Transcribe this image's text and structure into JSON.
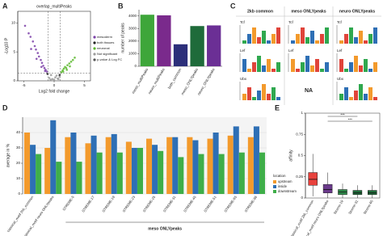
{
  "chart_data": [
    {
      "panel": "A",
      "type": "scatter",
      "title": "overlap_multiPeaks",
      "x_label": "Log2 fold change",
      "y_label": "-Log10 P",
      "xlim": [
        -6,
        6
      ],
      "ylim": [
        0,
        12
      ],
      "xticks": [
        -5,
        0,
        5
      ],
      "yticks": [
        0,
        5,
        10
      ],
      "vlines": [
        -1,
        1
      ],
      "hline": 1.3,
      "series": [
        {
          "name": "mesoderm",
          "color": "#7b3fa8",
          "x": [
            -4.8,
            -4.2,
            -3.9,
            -3.5,
            -3.2,
            -3.0,
            -2.7,
            -2.5,
            -2.2,
            -2.0,
            -1.8,
            -1.6,
            -1.4,
            -1.2,
            -3.8,
            -2.9,
            -2.1,
            -1.5
          ],
          "y": [
            9.5,
            8.2,
            7.6,
            6.8,
            6.0,
            5.4,
            4.8,
            4.2,
            3.6,
            3.1,
            2.6,
            2.2,
            1.9,
            1.6,
            5.5,
            3.8,
            2.4,
            1.7
          ]
        },
        {
          "name": "both tissues",
          "color": "#222222",
          "x": [
            -1.1,
            0.9
          ],
          "y": [
            1.2,
            1.0
          ]
        },
        {
          "name": "neuronal",
          "color": "#5cb82e",
          "x": [
            1.2,
            1.4,
            1.6,
            1.8,
            2.0,
            2.2,
            2.5,
            2.8,
            3.1,
            3.4,
            1.5,
            2.1,
            2.6
          ],
          "y": [
            1.5,
            1.8,
            2.1,
            2.4,
            2.2,
            2.7,
            3.0,
            3.3,
            3.6,
            4.0,
            1.6,
            1.9,
            2.5
          ]
        },
        {
          "name": "Not significant",
          "color": "#9a9a9a",
          "x": [
            -0.8,
            -0.5,
            -0.3,
            0,
            0.2,
            0.4,
            0.6,
            0.9,
            -0.6,
            0.7
          ],
          "y": [
            0.5,
            1.0,
            0.3,
            0.2,
            0.6,
            0.9,
            0.4,
            0.7,
            0.2,
            0.3
          ]
        },
        {
          "name": "p-value & Log FC",
          "color": "#555555",
          "x": [],
          "y": []
        }
      ]
    },
    {
      "panel": "B",
      "type": "bar",
      "y_label": "number of peaks",
      "categories": [
        "meso_multiPeaks",
        "neuro_multiPeaks",
        "both_common",
        "meso_ONLYpeaks",
        "neuro_ONLYpeaks"
      ],
      "values": [
        4100,
        4050,
        1750,
        3200,
        3250
      ],
      "colors": [
        "#3ea63a",
        "#7a2a8c",
        "#2c2f7a",
        "#1f6b3a",
        "#6b2f95"
      ],
      "ylim": [
        0,
        4500
      ],
      "yticks": [
        0,
        1000,
        2000,
        3000,
        4000
      ]
    },
    {
      "panel": "D",
      "type": "grouped_bar",
      "y_label": "average in %",
      "legend_title": "location",
      "ylim": [
        0,
        50
      ],
      "yticks": [
        0,
        10,
        20,
        30,
        40
      ],
      "grid": true,
      "groups": [
        {
          "name": null,
          "categories": [
            "classical_motif 2kb_common",
            "classical_motif neuro ONLYpeaks"
          ]
        },
        {
          "name": "meso ONLYpeaks",
          "categories": [
            "STREME-5",
            "STREME-17",
            "STREME-19",
            "STREME-23",
            "STREME-25",
            "STREME-31",
            "STREME-45",
            "STREME-51",
            "STREME-65",
            "STREME-86"
          ]
        }
      ],
      "series": [
        {
          "name": "upstream",
          "color": "#f39a2c",
          "values": [
            40,
            30,
            37,
            33,
            37,
            34,
            36,
            37,
            37,
            36,
            38,
            37
          ]
        },
        {
          "name": "inside",
          "color": "#2e6fb5",
          "values": [
            32,
            48,
            40,
            38,
            39,
            30,
            32,
            37,
            35,
            40,
            44,
            44
          ]
        },
        {
          "name": "downstream",
          "color": "#3fae49",
          "values": [
            26,
            21,
            21,
            27,
            27,
            30,
            28,
            24,
            26,
            26,
            27,
            27
          ]
        }
      ]
    },
    {
      "panel": "E",
      "type": "box",
      "y_label": "affinity",
      "ylim": [
        0,
        1
      ],
      "yticks": [
        0,
        0.25,
        0.5,
        0.75,
        1
      ],
      "annotations": [
        "***",
        "***"
      ],
      "categories": [
        "classical_motif 2kb_common",
        "classical_motif neuro ONLYpeaks",
        "Streme-19",
        "Streme-31",
        "Streme-65"
      ],
      "colors": [
        "#e8413c",
        "#6b3a8c",
        "#2f8a4a",
        "#1f6b3a",
        "#1f6b3a"
      ],
      "boxes": [
        {
          "min": 0.02,
          "q1": 0.15,
          "median": 0.22,
          "q3": 0.3,
          "max": 0.52
        },
        {
          "min": 0,
          "q1": 0.06,
          "median": 0.1,
          "q3": 0.16,
          "max": 0.3
        },
        {
          "min": 0,
          "q1": 0.04,
          "median": 0.07,
          "q3": 0.1,
          "max": 0.17
        },
        {
          "min": 0,
          "q1": 0.04,
          "median": 0.06,
          "q3": 0.09,
          "max": 0.15
        },
        {
          "min": 0,
          "q1": 0.04,
          "median": 0.06,
          "q3": 0.09,
          "max": 0.15
        }
      ]
    }
  ],
  "motif_panel": {
    "panel": "C",
    "columns": [
      "2kb common",
      "meso ONLYpeaks",
      "neuro ONLYpeaks"
    ],
    "rows": [
      [
        {
          "label": "Tcf"
        },
        {
          "label": "Tcf"
        },
        {
          "label": "Tcf"
        }
      ],
      [
        {
          "label": "Lef"
        },
        {
          "label": "Lef"
        },
        {
          "label": "Lef"
        }
      ],
      [
        {
          "label": "Ubx"
        },
        {
          "text": "NA"
        },
        {
          "label": "Ubx"
        }
      ]
    ]
  }
}
